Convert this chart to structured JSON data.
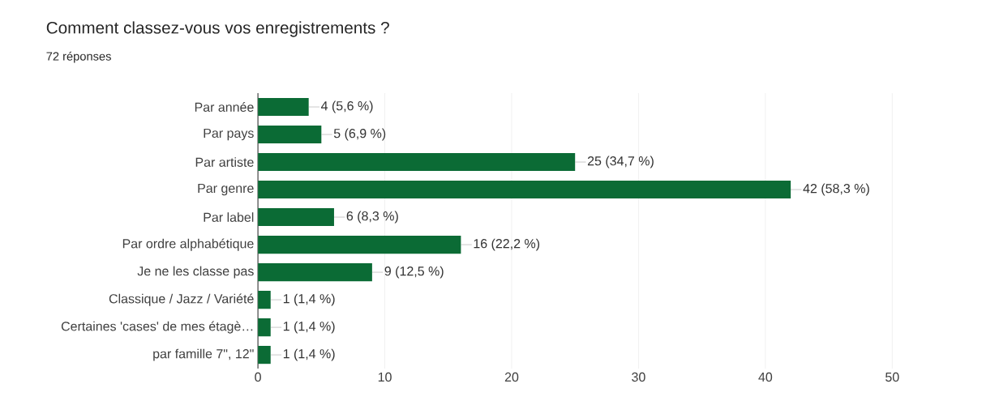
{
  "chart_data": {
    "type": "bar",
    "orientation": "horizontal",
    "title": "Comment classez-vous vos enregistrements ?",
    "subtitle": "72 réponses",
    "categories": [
      "Par année",
      "Par pays",
      "Par artiste",
      "Par genre",
      "Par label",
      "Par ordre alphabétique",
      "Je ne les classe pas",
      "Classique / Jazz / Variété",
      "Certaines 'cases' de mes étagè…",
      "par famille 7\", 12\""
    ],
    "values": [
      4,
      5,
      25,
      42,
      6,
      16,
      9,
      1,
      1,
      1
    ],
    "value_labels": [
      "4 (5,6 %)",
      "5 (6,9 %)",
      "25 (34,7 %)",
      "42 (58,3 %)",
      "6 (8,3 %)",
      "16 (22,2 %)",
      "9 (12,5 %)",
      "1 (1,4 %)",
      "1 (1,4 %)",
      "1 (1,4 %)"
    ],
    "color": "#0b6b35",
    "xlim": [
      0,
      50
    ],
    "xticks": [
      0,
      10,
      20,
      30,
      40,
      50
    ],
    "grid": "x"
  }
}
